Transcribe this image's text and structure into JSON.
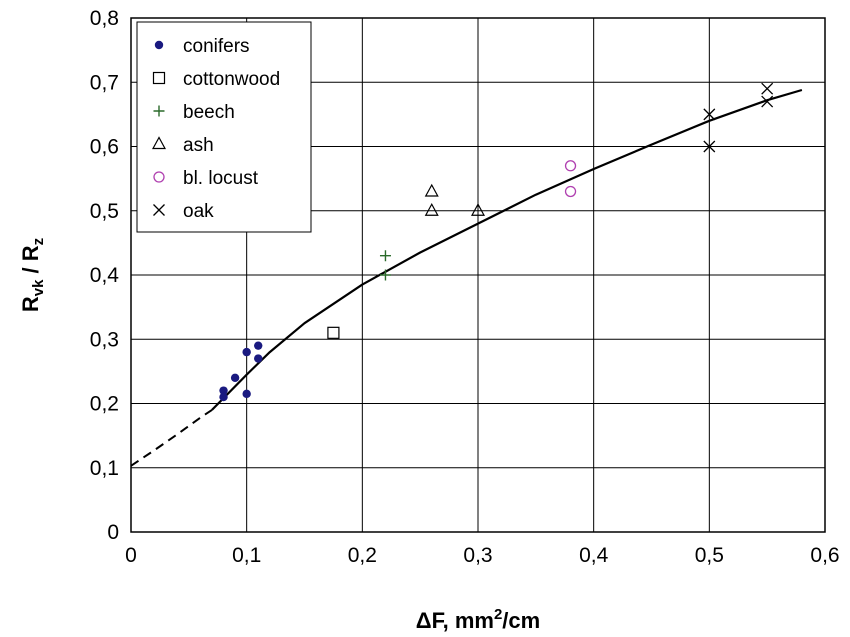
{
  "chart_data": {
    "type": "scatter",
    "x_ticks": [
      "0",
      "0,1",
      "0,2",
      "0,3",
      "0,4",
      "0,5",
      "0,6"
    ],
    "y_ticks": [
      "0",
      "0,1",
      "0,2",
      "0,3",
      "0,4",
      "0,5",
      "0,6",
      "0,7",
      "0,8"
    ],
    "xlim": [
      0,
      0.6
    ],
    "ylim": [
      0,
      0.8
    ],
    "grid": true,
    "legend_position": "top-left",
    "xlabel": {
      "prefix": "ΔF, mm",
      "sup": "2",
      "suffix": "/cm"
    },
    "ylabel": {
      "r1": "R",
      "s1": "vk",
      "mid": " / R",
      "s2": "z"
    },
    "series": [
      {
        "name": "conifers",
        "marker": "dot",
        "color": "#1a1a80",
        "points": [
          [
            0.08,
            0.22
          ],
          [
            0.08,
            0.21
          ],
          [
            0.09,
            0.24
          ],
          [
            0.1,
            0.28
          ],
          [
            0.1,
            0.215
          ],
          [
            0.11,
            0.29
          ],
          [
            0.11,
            0.27
          ]
        ]
      },
      {
        "name": "cottonwood",
        "marker": "square",
        "color": "#000000",
        "points": [
          [
            0.175,
            0.31
          ]
        ]
      },
      {
        "name": "beech",
        "marker": "plus",
        "color": "#2a6a2a",
        "points": [
          [
            0.22,
            0.43
          ],
          [
            0.22,
            0.4
          ]
        ]
      },
      {
        "name": "ash",
        "marker": "triangle",
        "color": "#000000",
        "points": [
          [
            0.26,
            0.53
          ],
          [
            0.26,
            0.5
          ],
          [
            0.3,
            0.5
          ]
        ]
      },
      {
        "name": "bl. locust",
        "marker": "circle",
        "color": "#b040b0",
        "points": [
          [
            0.38,
            0.57
          ],
          [
            0.38,
            0.53
          ]
        ]
      },
      {
        "name": "oak",
        "marker": "x",
        "color": "#000000",
        "points": [
          [
            0.5,
            0.65
          ],
          [
            0.5,
            0.6
          ],
          [
            0.55,
            0.69
          ],
          [
            0.55,
            0.67
          ]
        ]
      }
    ],
    "fit_curve": {
      "extrapolated_dashed": [
        [
          0.0,
          0.103
        ],
        [
          0.02,
          0.127
        ],
        [
          0.04,
          0.152
        ],
        [
          0.06,
          0.178
        ],
        [
          0.07,
          0.19
        ]
      ],
      "fitted_solid": [
        [
          0.07,
          0.19
        ],
        [
          0.1,
          0.245
        ],
        [
          0.12,
          0.28
        ],
        [
          0.15,
          0.325
        ],
        [
          0.2,
          0.385
        ],
        [
          0.25,
          0.435
        ],
        [
          0.3,
          0.48
        ],
        [
          0.35,
          0.525
        ],
        [
          0.4,
          0.565
        ],
        [
          0.45,
          0.603
        ],
        [
          0.5,
          0.64
        ],
        [
          0.55,
          0.672
        ],
        [
          0.58,
          0.688
        ]
      ]
    }
  }
}
